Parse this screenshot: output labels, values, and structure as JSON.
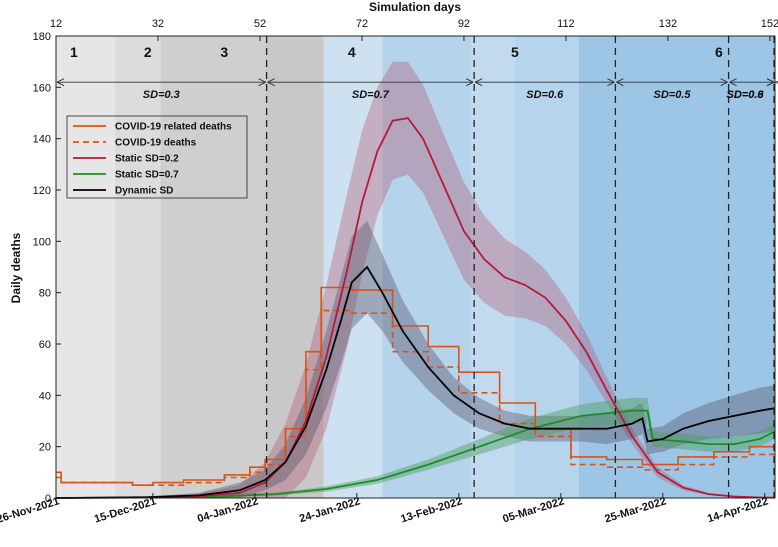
{
  "chart_data": {
    "type": "line",
    "title": "Simulation days",
    "xlabel_top": "Simulation days",
    "ylabel": "Daily deaths",
    "xlim": [
      12,
      153
    ],
    "ylim": [
      0,
      180
    ],
    "top_ticks": [
      12,
      32,
      52,
      72,
      92,
      112,
      132,
      152
    ],
    "y_ticks": [
      0,
      20,
      40,
      60,
      80,
      100,
      120,
      140,
      160,
      180
    ],
    "bottom_ticks": [
      {
        "day": 12,
        "label": "26-Nov-2021"
      },
      {
        "day": 31,
        "label": "15-Dec-2021"
      },
      {
        "day": 51,
        "label": "04-Jan-2022"
      },
      {
        "day": 71,
        "label": "24-Jan-2022"
      },
      {
        "day": 91,
        "label": "13-Feb-2022"
      },
      {
        "day": 111,
        "label": "05-Mar-2022"
      },
      {
        "day": 131,
        "label": "25-Mar-2022"
      },
      {
        "day": 151,
        "label": "14-Apr-2022"
      }
    ],
    "background_bands": [
      {
        "from": 12,
        "to": 23.5,
        "color": "#e6e6e6"
      },
      {
        "from": 23.5,
        "to": 32.5,
        "color": "#dcdcdc"
      },
      {
        "from": 32.5,
        "to": 53,
        "color": "#cfcfcf"
      },
      {
        "from": 53,
        "to": 64.5,
        "color": "#c8c8c8"
      },
      {
        "from": 64.5,
        "to": 76,
        "color": "#cde1f1"
      },
      {
        "from": 76,
        "to": 93.5,
        "color": "#b6d3ec"
      },
      {
        "from": 93.5,
        "to": 102,
        "color": "#c2daf0"
      },
      {
        "from": 102,
        "to": 114.5,
        "color": "#b7d4ed"
      },
      {
        "from": 114.5,
        "to": 153,
        "color": "#9dc5e6"
      }
    ],
    "phases": [
      {
        "label": "1",
        "day": 15.5
      },
      {
        "label": "2",
        "day": 30
      },
      {
        "label": "3",
        "day": 45
      },
      {
        "label": "4",
        "day": 70
      },
      {
        "label": "5",
        "day": 102
      },
      {
        "label": "6",
        "day": 142
      }
    ],
    "dashed_lines": [
      53.3,
      94,
      121.7,
      143.9,
      153
    ],
    "sd_periods": [
      {
        "from": 12,
        "to": 53.3,
        "label": "SD=0.3"
      },
      {
        "from": 53.3,
        "to": 94,
        "label": "SD=0.7"
      },
      {
        "from": 94,
        "to": 121.7,
        "label": "SD=0.6"
      },
      {
        "from": 121.7,
        "to": 143.9,
        "label": "SD=0.5"
      },
      {
        "from": 143.9,
        "to": 153,
        "label": "SD=0.6"
      },
      {
        "from": 153,
        "to": 166,
        "label": "SD=0.3"
      }
    ],
    "legend": [
      {
        "name": "COVID-19 related deaths",
        "color": "#d95319",
        "dash": false
      },
      {
        "name": "COVID-19 deaths",
        "color": "#d95319",
        "dash": true
      },
      {
        "name": "Static SD=0.2",
        "color": "#b51a3a",
        "dash": false
      },
      {
        "name": "Static SD=0.7",
        "color": "#1e8c24",
        "dash": false
      },
      {
        "name": "Dynamic SD",
        "color": "#000000",
        "dash": false
      }
    ],
    "series": [
      {
        "name": "Static SD=0.2",
        "color": "#b51a3a",
        "band_color": "#b3506a",
        "band_opacity": 0.35,
        "x": [
          12,
          30,
          40,
          48,
          53,
          57,
          61,
          65,
          69,
          72,
          75,
          78,
          81,
          84,
          88,
          92,
          96,
          100,
          104,
          108,
          112,
          116,
          120,
          125,
          130,
          135,
          140,
          145,
          150,
          153
        ],
        "y": [
          0,
          0.2,
          0.7,
          2,
          6,
          14,
          30,
          55,
          88,
          115,
          135,
          147,
          148,
          140,
          122,
          104,
          93,
          86,
          83,
          78,
          69,
          57,
          42,
          24,
          10,
          4,
          1.5,
          0.6,
          0.2,
          0.1
        ],
        "band": [
          0,
          0.3,
          1,
          3,
          8,
          15,
          22,
          28,
          30,
          28,
          25,
          23,
          22,
          21,
          20,
          19,
          17,
          15,
          13,
          11,
          9,
          7,
          5,
          3,
          2,
          1,
          0.5,
          0.2,
          0.1,
          0.1
        ]
      },
      {
        "name": "Dynamic SD",
        "color": "#000000",
        "band_color": "#555566",
        "band_opacity": 0.4,
        "x": [
          12,
          30,
          40,
          48,
          53,
          57,
          61,
          65,
          68,
          70,
          73,
          76,
          80,
          85,
          90,
          95,
          100,
          105,
          110,
          115,
          120,
          125,
          127,
          128,
          131,
          135,
          140,
          145,
          150,
          153
        ],
        "y": [
          0,
          0.3,
          1,
          3,
          7,
          14,
          28,
          50,
          70,
          84,
          90,
          80,
          65,
          51,
          40,
          33,
          29,
          27,
          27,
          27,
          27,
          29,
          31,
          22,
          23,
          27,
          30,
          32,
          34,
          35
        ],
        "band": [
          0,
          0.3,
          1,
          3,
          4,
          7,
          11,
          15,
          17,
          18,
          18,
          15,
          12,
          9,
          7,
          6,
          5,
          5,
          5,
          5,
          6,
          6,
          6,
          5,
          5,
          6,
          7,
          8,
          9,
          9
        ]
      },
      {
        "name": "Static SD=0.7",
        "color": "#1e8c24",
        "band_color": "#4ea060",
        "band_opacity": 0.45,
        "x": [
          12,
          40,
          55,
          65,
          75,
          85,
          95,
          105,
          115,
          125,
          128,
          129,
          135,
          140,
          145,
          150,
          153
        ],
        "y": [
          0,
          0.3,
          1.5,
          3.5,
          7,
          13,
          20,
          27,
          32,
          34,
          34,
          23,
          22,
          21,
          21,
          23,
          26
        ],
        "band": [
          0,
          0.3,
          0.6,
          1,
          1.5,
          2,
          3,
          4,
          4.5,
          5,
          5,
          3,
          3,
          3,
          3,
          3,
          3
        ]
      }
    ],
    "steps": [
      {
        "name": "COVID-19 related deaths",
        "color": "#d95319",
        "dash": false,
        "x": [
          12,
          13,
          13,
          27,
          27,
          31,
          31,
          37,
          37,
          45,
          45,
          50,
          50,
          53,
          53,
          57,
          57,
          61,
          61,
          64,
          64,
          70,
          70,
          78,
          78,
          85,
          85,
          91,
          91,
          99,
          99,
          106,
          106,
          113,
          113,
          120,
          120,
          127,
          127,
          134,
          134,
          141,
          141,
          148,
          148,
          153
        ],
        "y": [
          10,
          10,
          6,
          6,
          5,
          5,
          6,
          6,
          7,
          7,
          9,
          9,
          12,
          12,
          15,
          15,
          27,
          27,
          57,
          57,
          82,
          82,
          81,
          81,
          67,
          67,
          59,
          59,
          49,
          49,
          37,
          37,
          27,
          27,
          16,
          16,
          15,
          15,
          13,
          13,
          16,
          16,
          18,
          18,
          20,
          20
        ]
      },
      {
        "name": "COVID-19 deaths",
        "color": "#d95319",
        "dash": true,
        "x": [
          12,
          13,
          13,
          27,
          27,
          31,
          31,
          37,
          37,
          45,
          45,
          50,
          50,
          53,
          53,
          57,
          57,
          61,
          61,
          64,
          64,
          70,
          70,
          78,
          78,
          85,
          85,
          91,
          91,
          99,
          99,
          106,
          106,
          113,
          113,
          120,
          120,
          127,
          127,
          134,
          134,
          141,
          141,
          148,
          148,
          153
        ],
        "y": [
          8,
          8,
          6,
          6,
          5,
          5,
          5,
          5,
          6,
          6,
          8,
          8,
          10,
          10,
          13,
          13,
          24,
          24,
          50,
          50,
          73,
          73,
          72,
          72,
          57,
          57,
          51,
          51,
          41,
          41,
          29,
          29,
          24,
          24,
          13,
          13,
          12,
          12,
          11,
          11,
          13,
          13,
          16,
          16,
          17,
          17
        ]
      }
    ]
  }
}
